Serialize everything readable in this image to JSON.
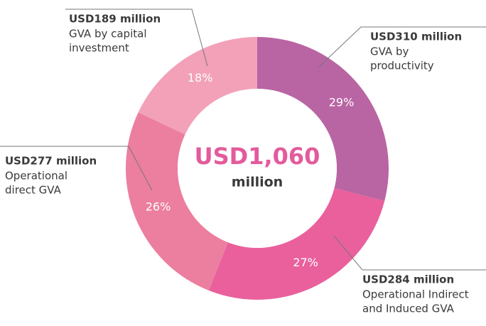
{
  "chart_data": {
    "type": "donut",
    "center_label": "USD1,060",
    "center_sublabel": "million",
    "values": [
      29,
      27,
      26,
      18
    ],
    "value_labels": [
      "29%",
      "27%",
      "26%",
      "18%"
    ],
    "amounts": [
      "USD310 million",
      "USD284 million",
      "USD277 million",
      "USD189 million"
    ],
    "descriptions": [
      [
        "GVA by",
        "productivity"
      ],
      [
        "Operational Indirect",
        "and Induced GVA"
      ],
      [
        "Operational",
        "direct GVA"
      ],
      [
        "GVA by capital",
        "investment"
      ]
    ],
    "colors": [
      "#b965a3",
      "#e9609c",
      "#ec7e9f",
      "#f2a1b8"
    ]
  }
}
